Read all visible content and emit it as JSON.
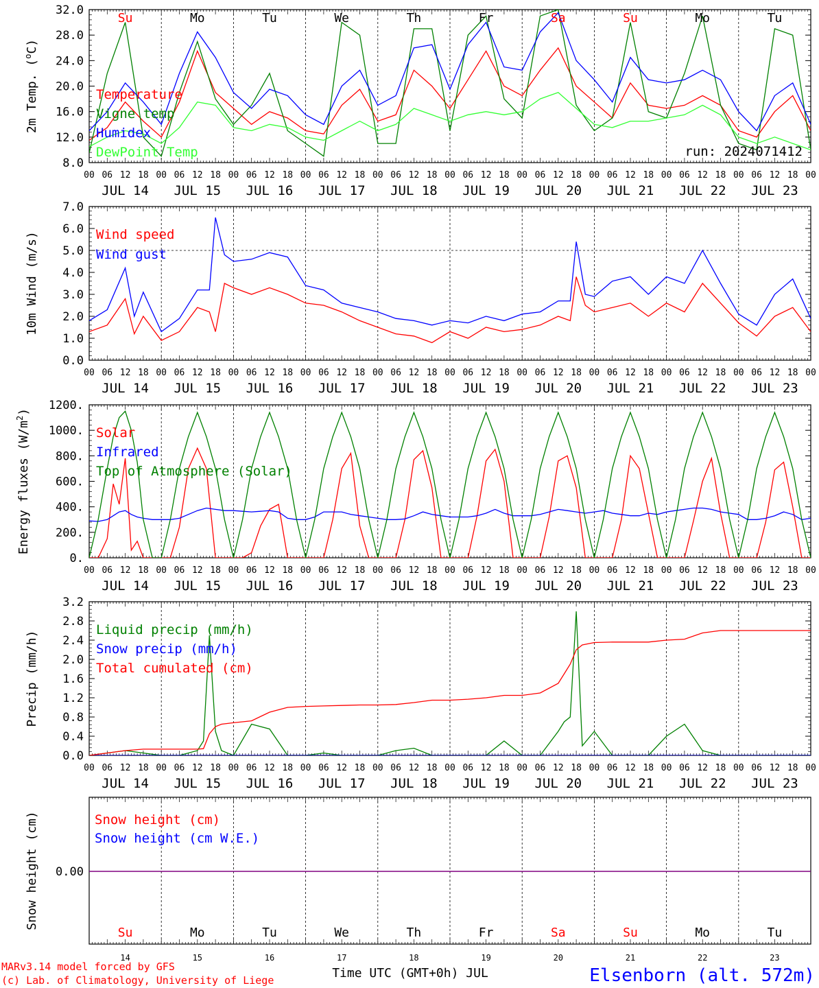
{
  "footer": {
    "credit_line1": "MARv3.14 model forced by GFS",
    "credit_line2": "(c) Lab. of Climatology, University of Liege",
    "xlabel": "Time UTC (GMT+0h) JUL",
    "station": "Elsenborn (alt. 572m)"
  },
  "colors": {
    "red": "#ff0000",
    "blue": "#0000ff",
    "green": "#008000",
    "light_green": "#33ff33",
    "purple": "#800080",
    "axis": "#000000"
  },
  "x_axis": {
    "hour_labels": [
      "00",
      "06",
      "12",
      "18"
    ],
    "end_label": "00",
    "dates": [
      "JUL 14",
      "JUL 15",
      "JUL 16",
      "JUL 17",
      "JUL 18",
      "JUL 19",
      "JUL 20",
      "JUL 21",
      "JUL 22",
      "JUL 23"
    ],
    "weekdays": [
      "Su",
      "Mo",
      "Tu",
      "We",
      "Th",
      "Fr",
      "Sa",
      "Su",
      "Mo",
      "Tu"
    ],
    "weekend_flags": [
      true,
      false,
      false,
      false,
      false,
      false,
      true,
      true,
      false,
      false
    ],
    "day_numbers": [
      "14",
      "15",
      "16",
      "17",
      "18",
      "19",
      "20",
      "21",
      "22",
      "23"
    ]
  },
  "chart_data": [
    {
      "type": "line",
      "ylabel": "2m Temp. (oC)",
      "ylim": [
        8.0,
        32.0
      ],
      "yticks": [
        "8.0",
        "12.0",
        "16.0",
        "20.0",
        "24.0",
        "28.0",
        "32.0"
      ],
      "annotation": "run: 2024071412",
      "x_hours": [
        0,
        6,
        12,
        18,
        24,
        30,
        36,
        42,
        48,
        54,
        60,
        66,
        72,
        78,
        84,
        90,
        96,
        102,
        108,
        114,
        120,
        126,
        132,
        138,
        144,
        150,
        156,
        162,
        168,
        174,
        180,
        186,
        192,
        198,
        204,
        210,
        216,
        222,
        228,
        234,
        240
      ],
      "series": [
        {
          "name": "Temperature",
          "color": "red",
          "values": [
            11.5,
            13.5,
            17.5,
            14.5,
            12.0,
            17.5,
            25.5,
            19.0,
            16.5,
            14.0,
            16.0,
            15.0,
            13.0,
            12.5,
            17.0,
            19.5,
            14.5,
            15.5,
            22.5,
            20.0,
            16.5,
            21.0,
            25.5,
            20.0,
            18.5,
            22.5,
            26.0,
            20.0,
            17.5,
            15.0,
            20.5,
            17.0,
            16.5,
            17.0,
            18.5,
            17.0,
            13.0,
            12.0,
            16.0,
            18.5,
            13.0
          ]
        },
        {
          "name": "Vigne temp",
          "color": "green",
          "values": [
            9.5,
            22.0,
            30.0,
            12.0,
            9.0,
            19.0,
            27.0,
            18.0,
            14.0,
            17.0,
            22.0,
            13.0,
            11.0,
            9.0,
            30.0,
            28.0,
            11.0,
            11.0,
            29.0,
            29.0,
            13.0,
            28.0,
            31.0,
            18.0,
            15.0,
            31.0,
            32.0,
            17.0,
            13.0,
            15.0,
            30.0,
            16.0,
            15.0,
            22.0,
            31.0,
            17.0,
            11.0,
            10.0,
            29.0,
            28.0,
            10.0
          ]
        },
        {
          "name": "Humidex",
          "color": "blue",
          "values": [
            13.0,
            16.0,
            20.5,
            17.5,
            14.0,
            22.0,
            28.5,
            24.5,
            19.0,
            16.5,
            19.5,
            18.5,
            15.5,
            14.0,
            20.0,
            22.5,
            17.0,
            18.5,
            26.0,
            26.5,
            19.5,
            26.5,
            30.0,
            23.0,
            22.5,
            28.5,
            31.5,
            24.0,
            21.0,
            17.5,
            24.5,
            21.0,
            20.5,
            21.0,
            22.5,
            21.0,
            16.0,
            13.0,
            18.5,
            20.5,
            14.0
          ]
        },
        {
          "name": "DewPoint Temp",
          "color": "light_green",
          "values": [
            10.5,
            12.0,
            13.0,
            12.5,
            11.0,
            13.5,
            17.5,
            17.0,
            13.5,
            13.0,
            14.0,
            13.5,
            12.0,
            11.5,
            13.0,
            14.5,
            13.0,
            14.0,
            16.5,
            15.5,
            14.5,
            15.5,
            16.0,
            15.5,
            16.0,
            18.0,
            19.0,
            16.5,
            14.0,
            13.5,
            14.5,
            14.5,
            15.0,
            15.5,
            17.0,
            15.5,
            12.0,
            11.0,
            12.0,
            11.0,
            10.0
          ]
        }
      ]
    },
    {
      "type": "line",
      "ylabel": "10m Wind (m/s)",
      "ylim": [
        0.0,
        7.0
      ],
      "yticks": [
        "0.0",
        "1.0",
        "2.0",
        "3.0",
        "4.0",
        "5.0",
        "6.0",
        "7.0"
      ],
      "reference_line": 5.0,
      "x_hours": [
        0,
        6,
        12,
        15,
        18,
        24,
        30,
        36,
        40,
        42,
        45,
        48,
        54,
        60,
        66,
        72,
        78,
        84,
        90,
        96,
        102,
        108,
        114,
        120,
        126,
        132,
        138,
        144,
        150,
        156,
        160,
        162,
        165,
        168,
        174,
        180,
        186,
        192,
        198,
        204,
        210,
        216,
        222,
        228,
        234,
        240
      ],
      "series": [
        {
          "name": "Wind speed",
          "color": "red",
          "values": [
            1.3,
            1.6,
            2.8,
            1.2,
            2.0,
            0.9,
            1.3,
            2.4,
            2.2,
            1.3,
            3.5,
            3.3,
            3.0,
            3.3,
            3.0,
            2.6,
            2.5,
            2.2,
            1.8,
            1.5,
            1.2,
            1.1,
            0.8,
            1.3,
            1.0,
            1.5,
            1.3,
            1.4,
            1.6,
            2.0,
            1.8,
            3.8,
            2.5,
            2.2,
            2.4,
            2.6,
            2.0,
            2.6,
            2.2,
            3.5,
            2.6,
            1.7,
            1.1,
            2.0,
            2.4,
            1.3
          ]
        },
        {
          "name": "Wind gust",
          "color": "blue",
          "values": [
            1.8,
            2.3,
            4.2,
            2.0,
            3.1,
            1.3,
            1.9,
            3.2,
            3.2,
            6.5,
            4.8,
            4.5,
            4.6,
            4.9,
            4.7,
            3.4,
            3.2,
            2.6,
            2.4,
            2.2,
            1.9,
            1.8,
            1.6,
            1.8,
            1.7,
            2.0,
            1.8,
            2.1,
            2.2,
            2.7,
            2.7,
            5.4,
            3.0,
            2.9,
            3.6,
            3.8,
            3.0,
            3.8,
            3.5,
            5.0,
            3.5,
            2.1,
            1.6,
            3.0,
            3.7,
            1.9
          ]
        }
      ]
    },
    {
      "type": "line",
      "ylabel": "Energy fluxes (W/m2)",
      "ylim": [
        0,
        1200
      ],
      "yticks": [
        "0.",
        "200.",
        "400.",
        "600.",
        "800.",
        "1000.",
        "1200."
      ],
      "x_hours": [
        0,
        3,
        6,
        8,
        10,
        12,
        14,
        16,
        18,
        21,
        24,
        27,
        30,
        33,
        36,
        39,
        42,
        45,
        48,
        51,
        54,
        57,
        60,
        63,
        66,
        69,
        72,
        75,
        78,
        81,
        84,
        87,
        90,
        93,
        96,
        99,
        102,
        105,
        108,
        111,
        114,
        117,
        120,
        123,
        126,
        129,
        132,
        135,
        138,
        141,
        144,
        147,
        150,
        153,
        156,
        159,
        162,
        165,
        168,
        171,
        174,
        177,
        180,
        183,
        186,
        189,
        192,
        195,
        198,
        201,
        204,
        207,
        210,
        213,
        216,
        219,
        222,
        225,
        228,
        231,
        234,
        237,
        240
      ],
      "series": [
        {
          "name": "Solar",
          "color": "red",
          "values": [
            0,
            0,
            150,
            580,
            420,
            780,
            60,
            130,
            0,
            0,
            0,
            0,
            240,
            700,
            860,
            700,
            0,
            0,
            0,
            0,
            40,
            250,
            380,
            420,
            0,
            0,
            0,
            0,
            0,
            300,
            700,
            820,
            250,
            0,
            0,
            0,
            0,
            300,
            770,
            840,
            550,
            0,
            0,
            0,
            0,
            330,
            760,
            850,
            600,
            0,
            0,
            0,
            0,
            320,
            760,
            800,
            550,
            0,
            0,
            0,
            0,
            300,
            800,
            700,
            350,
            0,
            0,
            0,
            0,
            290,
            600,
            780,
            350,
            0,
            0,
            0,
            0,
            280,
            690,
            750,
            400,
            0,
            0
          ]
        },
        {
          "name": "Infrared",
          "color": "blue",
          "values": [
            290,
            285,
            300,
            330,
            360,
            370,
            340,
            320,
            310,
            300,
            300,
            300,
            310,
            340,
            370,
            390,
            380,
            370,
            370,
            365,
            360,
            365,
            370,
            360,
            310,
            300,
            300,
            320,
            360,
            360,
            360,
            340,
            330,
            320,
            310,
            300,
            300,
            305,
            330,
            360,
            340,
            330,
            320,
            320,
            320,
            330,
            350,
            380,
            350,
            330,
            330,
            330,
            340,
            360,
            380,
            370,
            360,
            350,
            360,
            370,
            350,
            340,
            330,
            330,
            350,
            340,
            360,
            370,
            380,
            390,
            390,
            380,
            360,
            350,
            340,
            300,
            300,
            310,
            330,
            360,
            340,
            300,
            310
          ]
        },
        {
          "name": "Top of Atmosphere (Solar)",
          "color": "green",
          "values": [
            0,
            300,
            700,
            950,
            1100,
            1150,
            1000,
            750,
            300,
            0,
            0,
            300,
            700,
            950,
            1140,
            950,
            700,
            300,
            0,
            300,
            700,
            950,
            1140,
            950,
            700,
            300,
            0,
            300,
            700,
            950,
            1140,
            950,
            700,
            300,
            0,
            300,
            700,
            950,
            1140,
            950,
            700,
            300,
            0,
            300,
            700,
            950,
            1140,
            950,
            700,
            300,
            0,
            300,
            700,
            950,
            1140,
            950,
            700,
            300,
            0,
            300,
            700,
            950,
            1140,
            950,
            700,
            300,
            0,
            300,
            700,
            950,
            1140,
            950,
            700,
            300,
            0,
            300,
            700,
            950,
            1140,
            950,
            700,
            300,
            0
          ]
        }
      ]
    },
    {
      "type": "line",
      "ylabel": "Precip (mm/h)",
      "ylim": [
        0.0,
        3.2
      ],
      "yticks": [
        "0.0",
        "0.4",
        "0.8",
        "1.2",
        "1.6",
        "2.0",
        "2.4",
        "2.8",
        "3.2"
      ],
      "x_hours": [
        0,
        6,
        12,
        18,
        24,
        30,
        36,
        38,
        40,
        42,
        44,
        48,
        54,
        60,
        66,
        72,
        78,
        84,
        90,
        96,
        102,
        108,
        114,
        120,
        126,
        132,
        138,
        144,
        150,
        156,
        158,
        160,
        162,
        164,
        168,
        174,
        180,
        186,
        192,
        198,
        204,
        210,
        216,
        222,
        228,
        234,
        240
      ],
      "series": [
        {
          "name": "Liquid precip (mm/h)",
          "color": "green",
          "values": [
            0,
            0.05,
            0.1,
            0.05,
            0,
            0,
            0.1,
            0.3,
            2.5,
            0.5,
            0.1,
            0,
            0.65,
            0.55,
            0,
            0,
            0.05,
            0,
            0,
            0,
            0.1,
            0.15,
            0,
            0,
            0,
            0,
            0.3,
            0,
            0,
            0.5,
            0.7,
            0.8,
            3.0,
            0.2,
            0.5,
            0,
            0,
            0,
            0.4,
            0.65,
            0.1,
            0,
            0,
            0,
            0,
            0,
            0
          ]
        },
        {
          "name": "Snow precip (mm/h)",
          "color": "blue",
          "values": [
            0,
            0,
            0,
            0,
            0,
            0,
            0,
            0,
            0,
            0,
            0,
            0,
            0,
            0,
            0,
            0,
            0,
            0,
            0,
            0,
            0,
            0,
            0,
            0,
            0,
            0,
            0,
            0,
            0,
            0,
            0,
            0,
            0,
            0,
            0,
            0,
            0,
            0,
            0,
            0,
            0,
            0,
            0,
            0,
            0,
            0,
            0
          ]
        },
        {
          "name": "Total cumulated (cm)",
          "color": "red",
          "values": [
            0,
            0.05,
            0.1,
            0.13,
            0.13,
            0.13,
            0.13,
            0.14,
            0.45,
            0.6,
            0.65,
            0.68,
            0.72,
            0.9,
            1.0,
            1.02,
            1.03,
            1.04,
            1.05,
            1.05,
            1.06,
            1.1,
            1.15,
            1.15,
            1.17,
            1.2,
            1.25,
            1.25,
            1.3,
            1.5,
            1.7,
            1.9,
            2.2,
            2.3,
            2.35,
            2.36,
            2.36,
            2.36,
            2.4,
            2.42,
            2.55,
            2.6,
            2.6,
            2.6,
            2.6,
            2.6,
            2.6
          ]
        }
      ]
    },
    {
      "type": "line",
      "ylabel": "Snow height (cm)",
      "ytick_label": "0.00",
      "x_hours": [
        0,
        240
      ],
      "series": [
        {
          "name": "Snow height (cm)",
          "color": "red",
          "values": [
            0,
            0
          ]
        },
        {
          "name": "Snow height (cm W.E.)",
          "color": "blue",
          "values": [
            0,
            0
          ]
        }
      ]
    }
  ]
}
